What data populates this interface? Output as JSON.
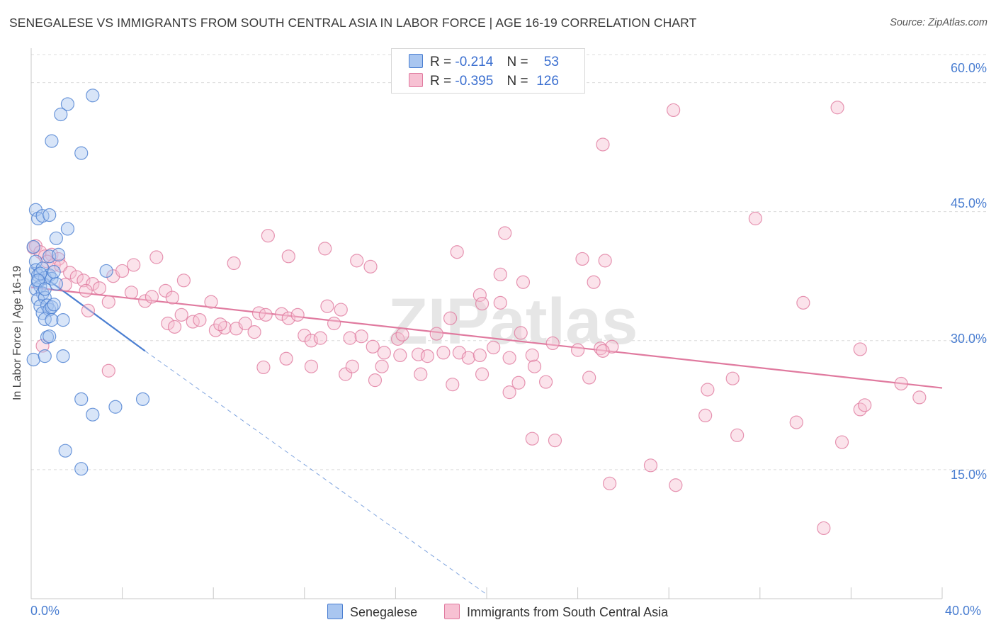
{
  "title": "SENEGALESE VS IMMIGRANTS FROM SOUTH CENTRAL ASIA IN LABOR FORCE | AGE 16-19 CORRELATION CHART",
  "source": "Source: ZipAtlas.com",
  "watermark": "ZIPatlas",
  "colors": {
    "blue": "#4a7ed1",
    "blue_fill": "#a9c6f0",
    "pink": "#e07a9f",
    "pink_fill": "#f7c1d3",
    "grid": "#dcdcdc"
  },
  "legend": {
    "rows": [
      {
        "r_label": "R =",
        "r_value": "-0.214",
        "n_label": "N =",
        "n_value": "53"
      },
      {
        "r_label": "R =",
        "r_value": "-0.395",
        "n_label": "N =",
        "n_value": "126"
      }
    ]
  },
  "chart_data": {
    "type": "scatter",
    "ylabel": "In Labor Force | Age 16-19",
    "xlim": [
      0,
      40
    ],
    "ylim": [
      0,
      64
    ],
    "x_tick_labels": [
      "0.0%",
      "40.0%"
    ],
    "y_ticks": [
      15,
      30,
      45,
      60
    ],
    "y_tick_labels": [
      "15.0%",
      "30.0%",
      "45.0%",
      "60.0%"
    ],
    "grid": true,
    "series": [
      {
        "name": "Senegalese",
        "color": "#4a7ed1",
        "trend": {
          "x0": 0,
          "y0": 38.5,
          "x1": 5.0,
          "y1": 28.8,
          "dashed_to_x": 20,
          "dashed_to_y": 0.5
        },
        "points": [
          [
            0.1,
            40.9
          ],
          [
            0.2,
            39.2
          ],
          [
            0.2,
            38.2
          ],
          [
            0.3,
            37.6
          ],
          [
            0.3,
            36.8
          ],
          [
            0.4,
            36.3
          ],
          [
            0.2,
            36.0
          ],
          [
            0.5,
            35.5
          ],
          [
            0.3,
            34.8
          ],
          [
            0.6,
            35.0
          ],
          [
            0.4,
            34.0
          ],
          [
            0.7,
            34.1
          ],
          [
            0.5,
            33.2
          ],
          [
            0.8,
            33.6
          ],
          [
            0.9,
            33.9
          ],
          [
            1.0,
            34.2
          ],
          [
            0.6,
            32.5
          ],
          [
            0.9,
            32.4
          ],
          [
            1.4,
            32.4
          ],
          [
            0.7,
            30.4
          ],
          [
            0.8,
            30.5
          ],
          [
            0.1,
            27.8
          ],
          [
            0.6,
            28.2
          ],
          [
            1.4,
            28.2
          ],
          [
            0.2,
            45.2
          ],
          [
            0.3,
            44.2
          ],
          [
            0.5,
            44.5
          ],
          [
            0.8,
            44.6
          ],
          [
            1.6,
            43.0
          ],
          [
            1.1,
            41.9
          ],
          [
            0.8,
            39.8
          ],
          [
            1.2,
            40.0
          ],
          [
            0.5,
            38.4
          ],
          [
            0.8,
            37.6
          ],
          [
            0.6,
            37.3
          ],
          [
            0.9,
            37.2
          ],
          [
            1.1,
            36.6
          ],
          [
            0.4,
            37.8
          ],
          [
            3.3,
            38.1
          ],
          [
            0.9,
            53.2
          ],
          [
            1.6,
            57.5
          ],
          [
            1.3,
            56.3
          ],
          [
            2.7,
            58.5
          ],
          [
            2.2,
            51.8
          ],
          [
            2.2,
            23.2
          ],
          [
            2.7,
            21.4
          ],
          [
            3.7,
            22.3
          ],
          [
            4.9,
            23.2
          ],
          [
            1.5,
            17.2
          ],
          [
            2.2,
            15.1
          ],
          [
            0.3,
            37.0
          ],
          [
            0.6,
            36.0
          ],
          [
            1.0,
            38.0
          ]
        ]
      },
      {
        "name": "Immigrants from South Central Asia",
        "color": "#e07a9f",
        "trend": {
          "x0": 0,
          "y0": 36.2,
          "x1": 40,
          "y1": 24.5
        },
        "points": [
          [
            0.1,
            40.8
          ],
          [
            0.2,
            41.0
          ],
          [
            0.4,
            40.3
          ],
          [
            0.6,
            39.8
          ],
          [
            0.9,
            40.0
          ],
          [
            1.2,
            39.5
          ],
          [
            0.7,
            39.2
          ],
          [
            1.0,
            38.8
          ],
          [
            1.3,
            38.7
          ],
          [
            1.7,
            37.9
          ],
          [
            2.0,
            37.4
          ],
          [
            2.3,
            37.0
          ],
          [
            1.5,
            36.5
          ],
          [
            2.7,
            36.6
          ],
          [
            2.4,
            35.8
          ],
          [
            3.0,
            36.1
          ],
          [
            3.6,
            37.5
          ],
          [
            4.0,
            38.1
          ],
          [
            4.5,
            38.8
          ],
          [
            5.5,
            39.7
          ],
          [
            4.4,
            35.6
          ],
          [
            5.0,
            34.6
          ],
          [
            5.3,
            35.1
          ],
          [
            5.9,
            35.8
          ],
          [
            3.4,
            34.5
          ],
          [
            2.5,
            33.5
          ],
          [
            6.2,
            35.0
          ],
          [
            6.6,
            33.0
          ],
          [
            6.0,
            32.0
          ],
          [
            6.3,
            31.6
          ],
          [
            7.1,
            32.2
          ],
          [
            7.4,
            32.4
          ],
          [
            7.9,
            34.5
          ],
          [
            8.1,
            31.2
          ],
          [
            8.5,
            31.5
          ],
          [
            8.3,
            31.9
          ],
          [
            9.0,
            31.4
          ],
          [
            9.4,
            32.0
          ],
          [
            9.8,
            31.0
          ],
          [
            10.0,
            33.2
          ],
          [
            10.3,
            33.0
          ],
          [
            11.0,
            33.1
          ],
          [
            11.3,
            32.6
          ],
          [
            11.7,
            33.0
          ],
          [
            12.0,
            30.6
          ],
          [
            12.3,
            30.0
          ],
          [
            12.7,
            30.3
          ],
          [
            13.3,
            32.0
          ],
          [
            13.6,
            33.6
          ],
          [
            13.0,
            34.0
          ],
          [
            14.0,
            30.3
          ],
          [
            14.5,
            30.5
          ],
          [
            15.0,
            29.3
          ],
          [
            15.5,
            28.6
          ],
          [
            16.1,
            30.2
          ],
          [
            16.3,
            30.7
          ],
          [
            17.0,
            28.4
          ],
          [
            17.4,
            28.2
          ],
          [
            17.8,
            30.8
          ],
          [
            18.1,
            28.6
          ],
          [
            18.4,
            32.6
          ],
          [
            18.8,
            28.6
          ],
          [
            19.2,
            28.0
          ],
          [
            19.7,
            28.3
          ],
          [
            20.3,
            29.2
          ],
          [
            21.0,
            28.0
          ],
          [
            21.5,
            30.9
          ],
          [
            22.0,
            28.3
          ],
          [
            22.9,
            29.7
          ],
          [
            25.5,
            29.3
          ],
          [
            24.5,
            25.7
          ],
          [
            17.1,
            26.1
          ],
          [
            18.5,
            24.9
          ],
          [
            19.8,
            26.1
          ],
          [
            13.8,
            26.1
          ],
          [
            14.1,
            27.0
          ],
          [
            15.4,
            27.0
          ],
          [
            15.1,
            25.4
          ],
          [
            16.2,
            28.3
          ],
          [
            22.1,
            27.0
          ],
          [
            24.0,
            28.9
          ],
          [
            25.0,
            29.1
          ],
          [
            22.6,
            25.2
          ],
          [
            21.0,
            24.0
          ],
          [
            21.4,
            25.1
          ],
          [
            10.2,
            26.9
          ],
          [
            11.2,
            27.9
          ],
          [
            12.3,
            27.0
          ],
          [
            0.5,
            29.4
          ],
          [
            3.4,
            26.5
          ],
          [
            6.7,
            37.0
          ],
          [
            8.9,
            39.0
          ],
          [
            10.4,
            42.2
          ],
          [
            11.3,
            39.8
          ],
          [
            12.9,
            40.7
          ],
          [
            14.3,
            39.3
          ],
          [
            14.9,
            38.6
          ],
          [
            18.7,
            40.3
          ],
          [
            20.8,
            42.5
          ],
          [
            20.6,
            37.7
          ],
          [
            21.6,
            36.8
          ],
          [
            24.2,
            39.5
          ],
          [
            24.7,
            36.8
          ],
          [
            25.2,
            39.3
          ],
          [
            19.7,
            35.3
          ],
          [
            19.8,
            34.3
          ],
          [
            20.6,
            34.4
          ],
          [
            25.1,
            52.8
          ],
          [
            28.2,
            56.8
          ],
          [
            31.8,
            44.2
          ],
          [
            35.4,
            57.1
          ],
          [
            33.9,
            34.4
          ],
          [
            29.7,
            24.3
          ],
          [
            30.8,
            25.6
          ],
          [
            31.0,
            19.0
          ],
          [
            33.6,
            20.5
          ],
          [
            35.6,
            18.2
          ],
          [
            36.4,
            22.0
          ],
          [
            36.6,
            22.5
          ],
          [
            36.4,
            29.0
          ],
          [
            38.2,
            25.0
          ],
          [
            39.0,
            23.4
          ],
          [
            25.1,
            28.8
          ],
          [
            22.0,
            18.6
          ],
          [
            23.0,
            18.4
          ],
          [
            27.2,
            15.5
          ],
          [
            25.4,
            13.4
          ],
          [
            28.3,
            13.2
          ],
          [
            34.8,
            8.2
          ],
          [
            29.6,
            21.3
          ]
        ]
      }
    ]
  },
  "bottom_legend": [
    "Senegalese",
    "Immigrants from South Central Asia"
  ]
}
